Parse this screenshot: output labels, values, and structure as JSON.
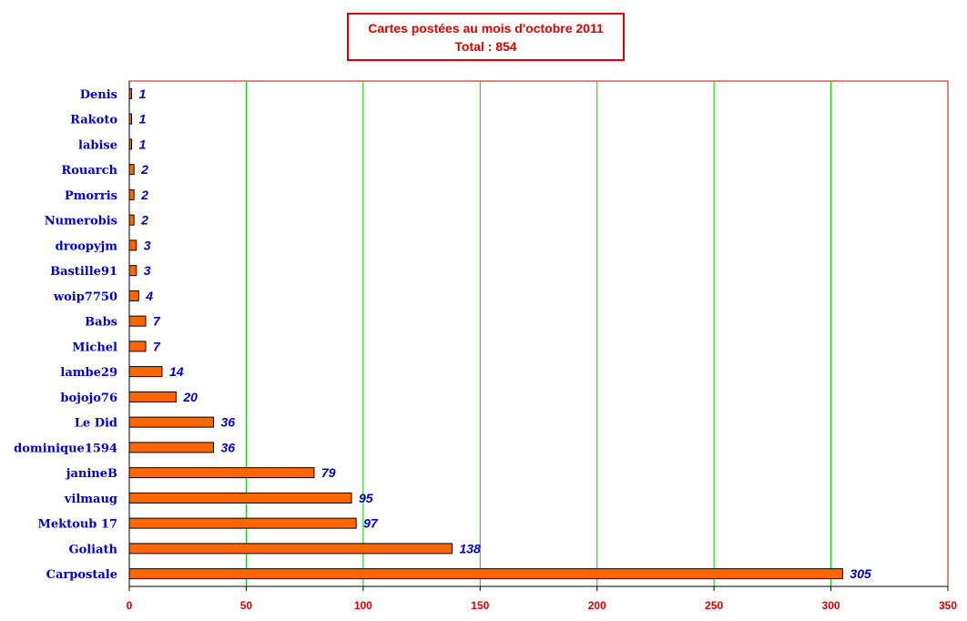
{
  "chart_data": {
    "type": "bar",
    "orientation": "horizontal",
    "title": "Cartes postées au mois d'octobre 2011",
    "subtitle": "Total : 854",
    "categories": [
      "Denis",
      "Rakoto",
      "labise",
      "Rouarch",
      "Pmorris",
      "Numerobis",
      "droopyjm",
      "Bastille91",
      "woip7750",
      "Babs",
      "Michel",
      "lambe29",
      "bojojo76",
      "Le Did",
      "dominique1594",
      "janineB",
      "vilmaug",
      "Mektoub 17",
      "Goliath",
      "Carpostale"
    ],
    "values": [
      1,
      1,
      1,
      2,
      2,
      2,
      3,
      3,
      4,
      7,
      7,
      14,
      20,
      36,
      36,
      79,
      95,
      97,
      138,
      305
    ],
    "xlim": [
      0,
      350
    ],
    "xticks": [
      0,
      50,
      100,
      150,
      200,
      250,
      300,
      350
    ],
    "grid": true,
    "colors": {
      "bar": "#ff6600",
      "bar_edge": "#000000",
      "grid": "#00cc00",
      "title": "#e00000",
      "category_labels": "#0000c8",
      "value_labels": "#0000c8",
      "tick_labels": "#e00000",
      "plot_border": "#e00000"
    }
  }
}
